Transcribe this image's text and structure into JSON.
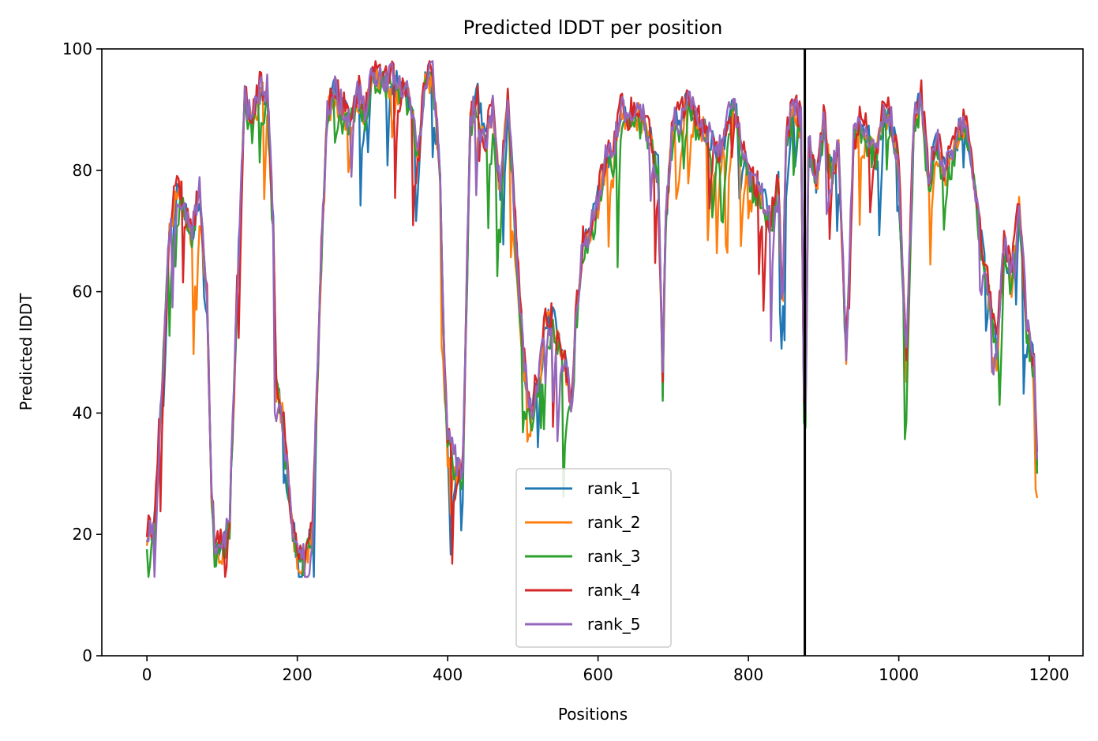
{
  "chart_data": {
    "type": "line",
    "title": "Predicted lDDT per position",
    "xlabel": "Positions",
    "ylabel": "Predicted lDDT",
    "xlim": [
      -60,
      1245
    ],
    "ylim": [
      0,
      100
    ],
    "xticks": [
      0,
      200,
      400,
      600,
      800,
      1000,
      1200
    ],
    "yticks": [
      0,
      20,
      40,
      60,
      80,
      100
    ],
    "grid": false,
    "legend_position": "bottom-center",
    "vline_x": 875,
    "colors": {
      "rank_1": "#1f77b4",
      "rank_2": "#ff7f0e",
      "rank_3": "#2ca02c",
      "rank_4": "#d62728",
      "rank_5": "#9467bd",
      "vline": "#000000"
    },
    "base_profile": {
      "x": [
        0,
        10,
        20,
        30,
        40,
        50,
        60,
        70,
        80,
        85,
        90,
        100,
        110,
        120,
        130,
        140,
        150,
        160,
        168,
        172,
        180,
        190,
        200,
        210,
        220,
        230,
        240,
        250,
        260,
        270,
        280,
        290,
        300,
        310,
        320,
        330,
        340,
        350,
        360,
        370,
        380,
        390,
        395,
        400,
        410,
        420,
        430,
        440,
        450,
        460,
        470,
        480,
        490,
        500,
        510,
        520,
        530,
        540,
        550,
        560,
        565,
        570,
        580,
        590,
        600,
        610,
        620,
        630,
        640,
        650,
        660,
        670,
        680,
        686,
        690,
        700,
        710,
        720,
        730,
        740,
        750,
        760,
        770,
        780,
        790,
        800,
        810,
        820,
        830,
        840,
        845,
        850,
        860,
        870,
        875,
        880,
        890,
        900,
        910,
        920,
        930,
        940,
        950,
        960,
        970,
        980,
        990,
        1000,
        1010,
        1020,
        1030,
        1040,
        1050,
        1060,
        1070,
        1080,
        1090,
        1100,
        1110,
        1120,
        1130,
        1140,
        1150,
        1160,
        1170,
        1180,
        1185
      ],
      "y": [
        20,
        22,
        45,
        70,
        78,
        74,
        70,
        76,
        60,
        30,
        18,
        18,
        22,
        60,
        92,
        88,
        93,
        93,
        70,
        45,
        40,
        25,
        16,
        17,
        20,
        60,
        90,
        93,
        90,
        88,
        93,
        90,
        96,
        95,
        95,
        95,
        94,
        92,
        82,
        95,
        96,
        80,
        50,
        35,
        32,
        30,
        88,
        92,
        85,
        90,
        75,
        93,
        70,
        50,
        40,
        45,
        55,
        55,
        52,
        45,
        40,
        55,
        68,
        70,
        75,
        82,
        82,
        90,
        88,
        90,
        88,
        85,
        80,
        45,
        72,
        88,
        88,
        92,
        88,
        87,
        85,
        83,
        86,
        92,
        84,
        80,
        77,
        75,
        72,
        78,
        55,
        85,
        90,
        88,
        30,
        85,
        78,
        88,
        80,
        84,
        50,
        85,
        88,
        85,
        82,
        90,
        88,
        80,
        48,
        88,
        92,
        78,
        85,
        80,
        82,
        86,
        88,
        78,
        68,
        60,
        50,
        68,
        62,
        75,
        55,
        48,
        28
      ]
    },
    "series": [
      {
        "name": "rank_1",
        "seed": 11,
        "offset": 0.0
      },
      {
        "name": "rank_2",
        "seed": 23,
        "offset": -0.6
      },
      {
        "name": "rank_3",
        "seed": 37,
        "offset": -1.2
      },
      {
        "name": "rank_4",
        "seed": 41,
        "offset": 0.8
      },
      {
        "name": "rank_5",
        "seed": 53,
        "offset": 0.4
      }
    ]
  }
}
